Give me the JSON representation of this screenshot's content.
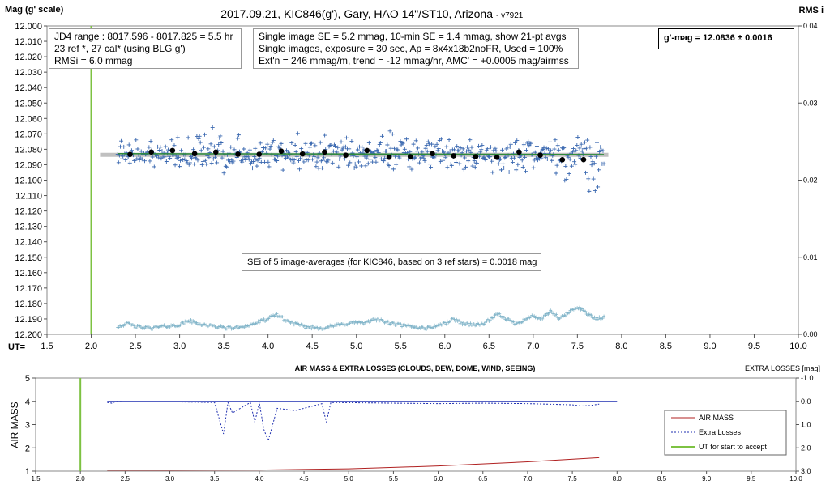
{
  "chart_data": [
    {
      "type": "scatter",
      "title": "2017.09.21,  KIC846(g'),  Gary, HAO 14\"/ST10, Arizona",
      "version": "- v7921",
      "ylabel": "Mag (g' scale)",
      "y2label": "RMS i",
      "xlabel": "UT=",
      "xlim": [
        1.5,
        10.0
      ],
      "ylim": [
        12.2,
        12.0
      ],
      "y2lim": [
        0.0,
        0.04
      ],
      "xticks": [
        "1.5",
        "2.0",
        "2.5",
        "3.0",
        "3.5",
        "4.0",
        "4.5",
        "5.0",
        "5.5",
        "6.0",
        "6.5",
        "7.0",
        "7.5",
        "8.0",
        "8.5",
        "9.0",
        "9.5",
        "10.0"
      ],
      "yticks": [
        "12.000",
        "12.010",
        "12.020",
        "12.030",
        "12.040",
        "12.050",
        "12.060",
        "12.070",
        "12.080",
        "12.090",
        "12.100",
        "12.110",
        "12.120",
        "12.130",
        "12.140",
        "12.150",
        "12.160",
        "12.170",
        "12.180",
        "12.190",
        "12.200"
      ],
      "y2ticks": [
        "0.04",
        "0.03",
        "0.02",
        "0.01",
        "0.00"
      ],
      "grid": false,
      "colors": {
        "single": "#3a68b0",
        "avg": "#000000",
        "model": "#2e8b3a",
        "mean_band": "#c0c0c0",
        "start_line": "#7dc242",
        "rms": "#7fb3c8"
      },
      "start_ut": 2.0,
      "mean_mag": 12.0836,
      "mean_range": [
        2.1,
        7.85
      ],
      "averages": {
        "x": [
          2.44,
          2.68,
          2.92,
          3.17,
          3.41,
          3.66,
          3.9,
          4.15,
          4.39,
          4.64,
          4.88,
          5.12,
          5.37,
          5.61,
          5.86,
          6.1,
          6.35,
          6.59,
          6.84,
          7.08,
          7.33,
          7.57
        ],
        "y": [
          12.0833,
          12.0818,
          12.0808,
          12.0828,
          12.0818,
          12.0832,
          12.0832,
          12.0812,
          12.083,
          12.0818,
          12.0838,
          12.0808,
          12.0852,
          12.0848,
          12.0828,
          12.0842,
          12.0848,
          12.0852,
          12.0818,
          12.0838,
          12.0868,
          12.0867
        ]
      },
      "rms_curve": {
        "x": [
          2.3,
          2.4,
          2.5,
          2.65,
          2.8,
          3.0,
          3.1,
          3.2,
          3.4,
          3.6,
          3.8,
          4.0,
          4.1,
          4.2,
          4.4,
          4.6,
          4.8,
          5.0,
          5.1,
          5.2,
          5.4,
          5.6,
          5.8,
          6.0,
          6.1,
          6.2,
          6.4,
          6.5,
          6.6,
          6.8,
          7.0,
          7.1,
          7.2,
          7.3,
          7.4,
          7.5,
          7.6,
          7.7,
          7.8
        ],
        "y": [
          0.001,
          0.0014,
          0.001,
          0.0008,
          0.001,
          0.0012,
          0.0018,
          0.0014,
          0.001,
          0.0008,
          0.0012,
          0.002,
          0.0026,
          0.0018,
          0.001,
          0.0008,
          0.0012,
          0.0016,
          0.0014,
          0.002,
          0.0014,
          0.001,
          0.0008,
          0.0014,
          0.002,
          0.0014,
          0.0012,
          0.0018,
          0.0026,
          0.0014,
          0.0024,
          0.002,
          0.003,
          0.002,
          0.0028,
          0.0036,
          0.0028,
          0.002,
          0.0022
        ]
      },
      "annotations": {
        "jd_box": [
          "JD4 range : 8017.596 - 8017.825 =  5.5  hr",
          "23 ref *, 27 cal* (using BLG g')",
          "RMSi = 6.0 mmag"
        ],
        "info_box": [
          "Single image SE = 5.2 mmag, 10-min SE = 1.4 mmag, show 21-pt avgs",
          "Single images, exposure = 30 sec, Ap = 8x4x18b2noFR, Used = 100%",
          "Ext'n = 246 mmag/m, trend =  -12 mmag/hr, AMC' = +0.0005 mag/airmss"
        ],
        "mag_box": "g'-mag = 12.0836 ± 0.0016",
        "sei_box": "SEi of 5 image-averages (for KIC846, based on 3 ref stars) = 0.0018 mag"
      }
    },
    {
      "type": "line",
      "title": "AIR MASS & EXTRA LOSSES (CLOUDS, DEW, DOME, WIND, SEEING)",
      "ylabel": "AIR MASS",
      "y2label": "EXTRA LOSSES [mag]",
      "xlim": [
        1.5,
        10.0
      ],
      "ylim": [
        1,
        5
      ],
      "y2lim": [
        3.0,
        -1.0
      ],
      "xticks": [
        "1.5",
        "2.0",
        "2.5",
        "3.0",
        "3.5",
        "4.0",
        "4.5",
        "5.0",
        "5.5",
        "6.0",
        "6.5",
        "7.0",
        "7.5",
        "8.0",
        "8.5",
        "9.0",
        "9.5",
        "10.0"
      ],
      "yticks": [
        "1",
        "2",
        "3",
        "4",
        "5"
      ],
      "y2ticks": [
        "-1.0",
        "0.0",
        "1.0",
        "2.0",
        "3.0"
      ],
      "start_ut": 2.0,
      "legend_position": "right",
      "series": [
        {
          "name": "AIR MASS",
          "color": "#b02020",
          "style": "solid",
          "x": [
            2.3,
            3.0,
            4.0,
            5.0,
            6.0,
            7.0,
            7.8
          ],
          "y": [
            1.04,
            1.04,
            1.05,
            1.1,
            1.22,
            1.4,
            1.58
          ]
        },
        {
          "name": "Extra Losses",
          "color": "#1f2fb0",
          "style": "dashed",
          "x": [
            2.3,
            2.35,
            2.4,
            2.5,
            3.0,
            3.5,
            3.6,
            3.65,
            3.7,
            3.9,
            3.95,
            4.0,
            4.05,
            4.1,
            4.2,
            4.4,
            4.7,
            4.75,
            4.8,
            5.5,
            6.0,
            6.5,
            7.0,
            7.5,
            7.6,
            7.7,
            7.8
          ],
          "y": [
            0.05,
            0.08,
            0.0,
            0.01,
            0.02,
            0.05,
            1.4,
            0.05,
            0.5,
            0.05,
            0.9,
            0.05,
            1.2,
            1.7,
            0.3,
            0.4,
            0.1,
            0.9,
            0.05,
            0.08,
            0.1,
            0.08,
            0.1,
            0.15,
            0.2,
            0.18,
            0.12
          ]
        },
        {
          "name": "UT for start to accept",
          "color": "#7dc242",
          "style": "solid"
        }
      ],
      "zero_loss_line": {
        "x": [
          2.3,
          8.0
        ],
        "y": [
          0.0,
          0.0
        ]
      }
    }
  ]
}
